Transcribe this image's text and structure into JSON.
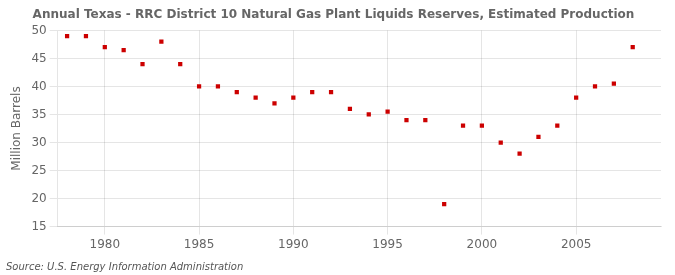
{
  "chart_data": {
    "type": "scatter",
    "title": "Annual Texas - RRC District 10 Natural Gas Plant Liquids Reserves, Estimated Production",
    "ylabel": "Million Barrels",
    "annotations": [
      "Source: U.S. Energy Information Administration"
    ],
    "x": [
      1978,
      1979,
      1980,
      1981,
      1982,
      1983,
      1984,
      1985,
      1986,
      1987,
      1988,
      1989,
      1990,
      1991,
      1992,
      1993,
      1994,
      1995,
      1996,
      1997,
      1998,
      1999,
      2000,
      2001,
      2002,
      2003,
      2004,
      2005,
      2006,
      2007,
      2008
    ],
    "values": [
      49.0,
      49.0,
      47.0,
      46.5,
      44.0,
      48.0,
      44.0,
      40.0,
      40.0,
      39.0,
      38.0,
      37.0,
      38.0,
      39.0,
      39.0,
      36.0,
      35.0,
      35.5,
      34.0,
      34.0,
      19.0,
      33.0,
      33.0,
      30.0,
      28.0,
      31.0,
      33.0,
      38.0,
      40.0,
      40.5,
      47.0
    ],
    "color": "#cc0000",
    "marker": "square",
    "xlim": [
      1977.5,
      2009.5
    ],
    "xticks": [
      1980,
      1985,
      1990,
      1995,
      2000,
      2005
    ],
    "ylim": [
      15,
      50
    ],
    "yticks": [
      15,
      20,
      25,
      30,
      35,
      40,
      45,
      50
    ],
    "grid": true
  }
}
